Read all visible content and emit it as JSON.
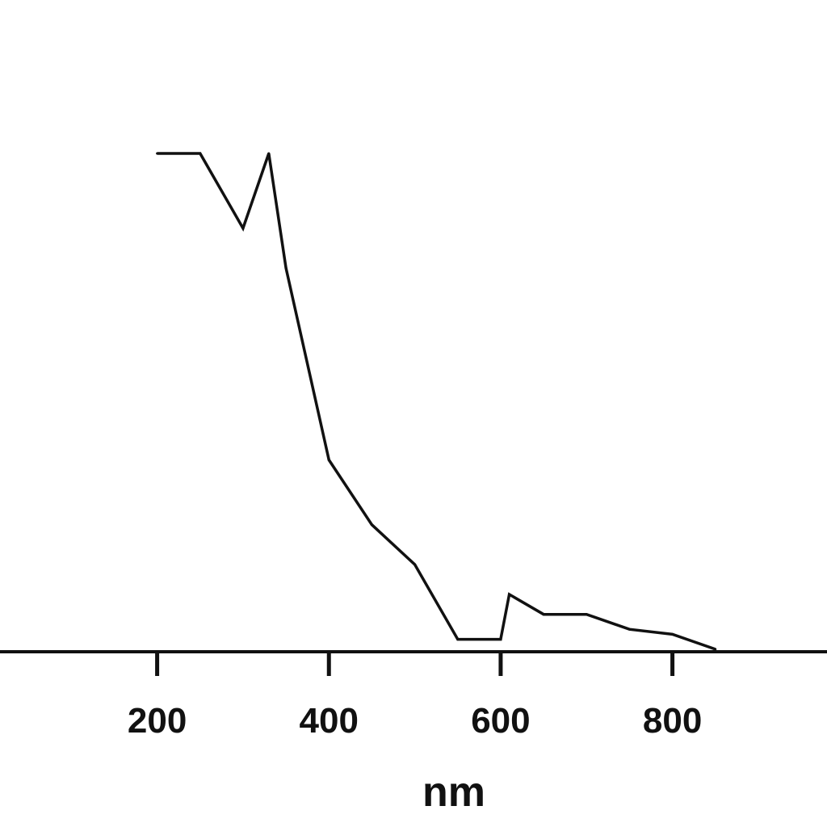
{
  "chart_data": {
    "type": "line",
    "title": "",
    "xlabel": "nm",
    "ylabel": "",
    "xlim": [
      17,
      980
    ],
    "ylim": [
      0,
      100
    ],
    "x_ticks": [
      200,
      400,
      600,
      800
    ],
    "x_tick_labels": [
      "200",
      "400",
      "600",
      "800"
    ],
    "grid": false,
    "legend": "none",
    "line_color": "#111111",
    "axis_color": "#111111",
    "series": [
      {
        "values": [
          {
            "x": 200,
            "y": 100
          },
          {
            "x": 250,
            "y": 100
          },
          {
            "x": 300,
            "y": 85
          },
          {
            "x": 330,
            "y": 100
          },
          {
            "x": 350,
            "y": 77
          },
          {
            "x": 400,
            "y": 38.5
          },
          {
            "x": 450,
            "y": 25.5
          },
          {
            "x": 500,
            "y": 17.5
          },
          {
            "x": 550,
            "y": 2.5
          },
          {
            "x": 600,
            "y": 2.5
          },
          {
            "x": 610,
            "y": 11.5
          },
          {
            "x": 650,
            "y": 7.5
          },
          {
            "x": 700,
            "y": 7.5
          },
          {
            "x": 750,
            "y": 4.5
          },
          {
            "x": 800,
            "y": 3.5
          },
          {
            "x": 850,
            "y": 0.5
          }
        ]
      }
    ]
  }
}
